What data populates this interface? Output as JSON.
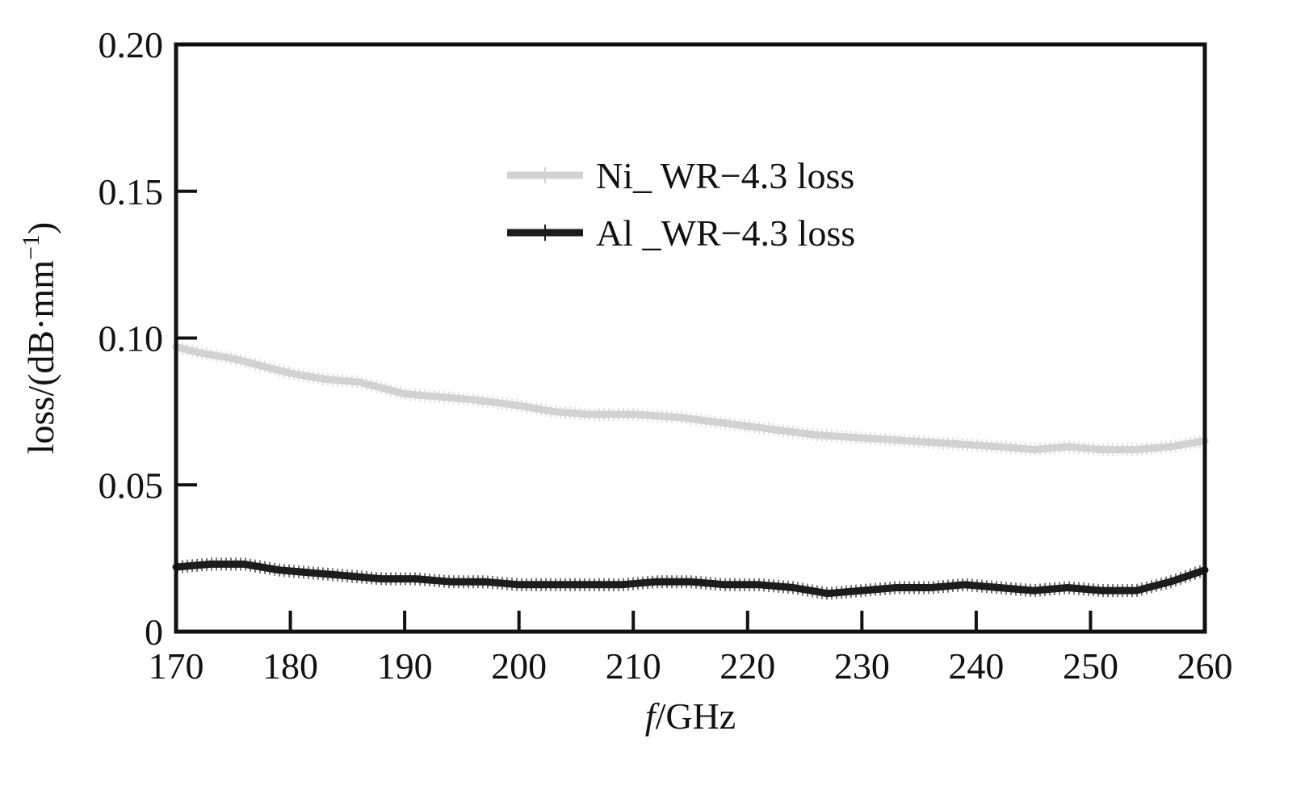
{
  "chart_data": {
    "type": "line",
    "xlabel": {
      "italic": "f",
      "rest": "/GHz"
    },
    "ylabel": {
      "main": "loss/(dB·mm",
      "sup": "−1",
      "close": ")"
    },
    "xlim": [
      170,
      260
    ],
    "ylim": [
      0,
      0.2
    ],
    "xticks": [
      170,
      180,
      190,
      200,
      210,
      220,
      230,
      240,
      250,
      260
    ],
    "yticks": [
      0,
      0.05,
      0.1,
      0.15,
      0.2
    ],
    "ytick_labels": [
      "0",
      "0.05",
      "0.10",
      "0.15",
      "0.20"
    ],
    "grid": false,
    "legend": "upper-center",
    "series": [
      {
        "name": "Ni_ WR−4.3 loss",
        "color": "#d2d2d2",
        "x": [
          170,
          172,
          175,
          178,
          180,
          183,
          186,
          190,
          193,
          196,
          200,
          203,
          206,
          210,
          214,
          218,
          222,
          226,
          230,
          234,
          238,
          242,
          245,
          248,
          251,
          254,
          257,
          260
        ],
        "y": [
          0.097,
          0.095,
          0.093,
          0.09,
          0.088,
          0.086,
          0.085,
          0.081,
          0.08,
          0.079,
          0.077,
          0.075,
          0.074,
          0.074,
          0.073,
          0.071,
          0.069,
          0.067,
          0.066,
          0.065,
          0.064,
          0.063,
          0.062,
          0.063,
          0.062,
          0.062,
          0.063,
          0.065
        ]
      },
      {
        "name": "Al _WR−4.3 loss",
        "color": "#1c1c1c",
        "x": [
          170,
          173,
          176,
          179,
          182,
          185,
          188,
          191,
          194,
          197,
          200,
          203,
          206,
          209,
          212,
          215,
          218,
          221,
          224,
          227,
          230,
          233,
          236,
          239,
          242,
          245,
          248,
          251,
          254,
          257,
          260
        ],
        "y": [
          0.022,
          0.023,
          0.023,
          0.021,
          0.02,
          0.019,
          0.018,
          0.018,
          0.017,
          0.017,
          0.016,
          0.016,
          0.016,
          0.016,
          0.017,
          0.017,
          0.016,
          0.016,
          0.015,
          0.013,
          0.014,
          0.015,
          0.015,
          0.016,
          0.015,
          0.014,
          0.015,
          0.014,
          0.014,
          0.017,
          0.021
        ]
      }
    ]
  }
}
